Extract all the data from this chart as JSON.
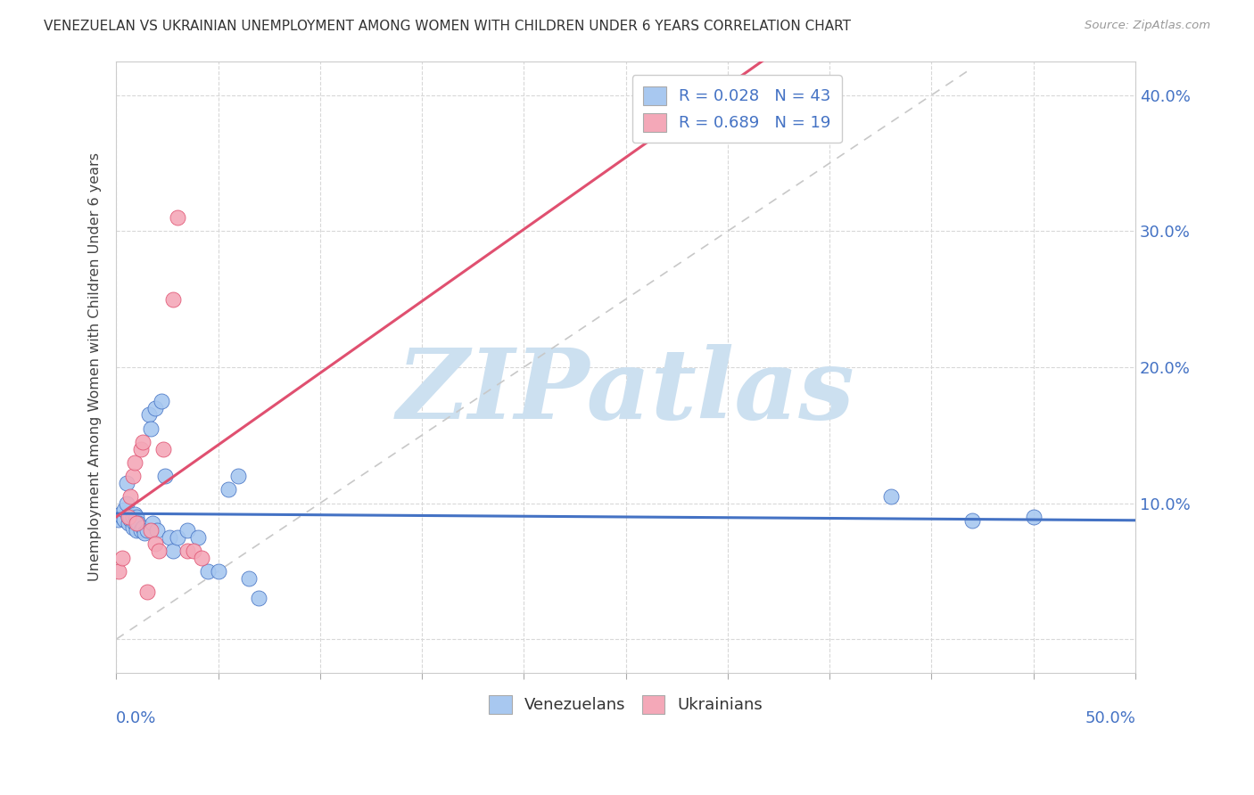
{
  "title": "VENEZUELAN VS UKRAINIAN UNEMPLOYMENT AMONG WOMEN WITH CHILDREN UNDER 6 YEARS CORRELATION CHART",
  "source": "Source: ZipAtlas.com",
  "ylabel": "Unemployment Among Women with Children Under 6 years",
  "xlim": [
    0.0,
    0.5
  ],
  "ylim": [
    -0.025,
    0.425
  ],
  "yticks": [
    0.0,
    0.1,
    0.2,
    0.3,
    0.4
  ],
  "ytick_labels": [
    "",
    "10.0%",
    "20.0%",
    "30.0%",
    "40.0%"
  ],
  "xticks": [
    0.0,
    0.05,
    0.1,
    0.15,
    0.2,
    0.25,
    0.3,
    0.35,
    0.4,
    0.45,
    0.5
  ],
  "legend_venezuelan": "R = 0.028   N = 43",
  "legend_ukrainian": "R = 0.689   N = 19",
  "venezuelan_color": "#a8c8f0",
  "venezuelan_line_color": "#4472c4",
  "ukrainian_color": "#f4a8b8",
  "ukrainian_line_color": "#e05070",
  "diagonal_color": "#c8c8c8",
  "watermark": "ZIPatlas",
  "watermark_color": "#cce0f0",
  "venezuelan_x": [
    0.001,
    0.002,
    0.003,
    0.004,
    0.004,
    0.005,
    0.005,
    0.006,
    0.006,
    0.007,
    0.007,
    0.008,
    0.008,
    0.009,
    0.009,
    0.01,
    0.01,
    0.011,
    0.012,
    0.013,
    0.014,
    0.015,
    0.016,
    0.017,
    0.018,
    0.019,
    0.02,
    0.022,
    0.024,
    0.026,
    0.028,
    0.03,
    0.035,
    0.04,
    0.045,
    0.05,
    0.055,
    0.06,
    0.065,
    0.07,
    0.38,
    0.42,
    0.45
  ],
  "venezuelan_y": [
    0.088,
    0.092,
    0.09,
    0.088,
    0.095,
    0.1,
    0.115,
    0.09,
    0.085,
    0.088,
    0.09,
    0.082,
    0.09,
    0.085,
    0.092,
    0.08,
    0.09,
    0.085,
    0.08,
    0.082,
    0.078,
    0.08,
    0.165,
    0.155,
    0.085,
    0.17,
    0.08,
    0.175,
    0.12,
    0.075,
    0.065,
    0.075,
    0.08,
    0.075,
    0.05,
    0.05,
    0.11,
    0.12,
    0.045,
    0.03,
    0.105,
    0.087,
    0.09
  ],
  "ukrainian_x": [
    0.001,
    0.003,
    0.006,
    0.007,
    0.008,
    0.009,
    0.01,
    0.012,
    0.013,
    0.015,
    0.017,
    0.019,
    0.021,
    0.023,
    0.028,
    0.03,
    0.035,
    0.038,
    0.042
  ],
  "ukrainian_y": [
    0.05,
    0.06,
    0.09,
    0.105,
    0.12,
    0.13,
    0.085,
    0.14,
    0.145,
    0.035,
    0.08,
    0.07,
    0.065,
    0.14,
    0.25,
    0.31,
    0.065,
    0.065,
    0.06
  ],
  "ven_line_x0": 0.0,
  "ven_line_x1": 0.5,
  "ven_line_y0": 0.088,
  "ven_line_y1": 0.093,
  "ukr_line_x0": 0.0,
  "ukr_line_x1": 0.5,
  "ukr_line_y0": -0.015,
  "ukr_line_y1": 0.4
}
